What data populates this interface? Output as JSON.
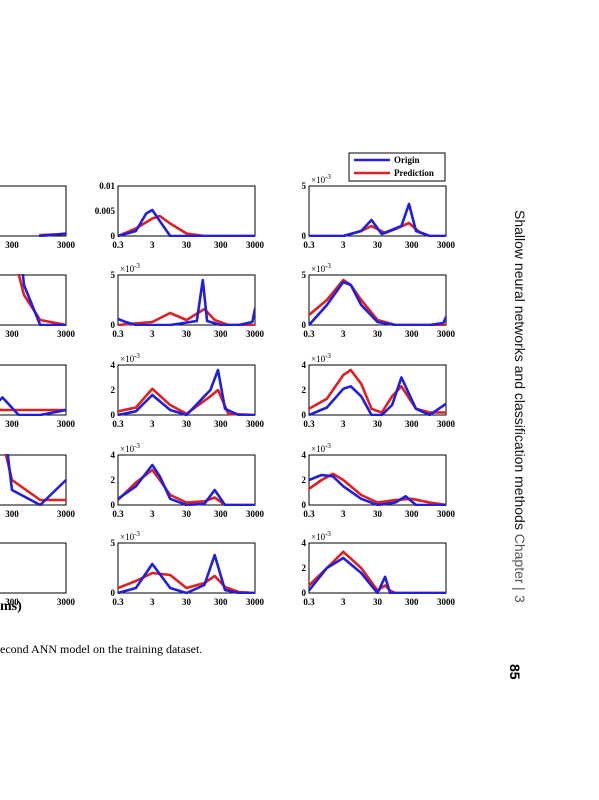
{
  "chart_data": {
    "type": "line",
    "layout": "5 rows x 3 visible columns (left column cropped)",
    "legend": {
      "entries": [
        "Origin",
        "Prediction"
      ],
      "placement": "top-right"
    },
    "colors": {
      "Origin": "#1f1fe0",
      "Prediction": "#e02020"
    },
    "xscale": "log",
    "xticks": [
      "0.3",
      "3",
      "30",
      "300",
      "3000"
    ],
    "panels": [
      {
        "col": 0,
        "row": 0,
        "xticks_visible": [
          "300",
          "3000"
        ],
        "series": [
          {
            "name": "Origin",
            "x": [
              1000,
              3000
            ],
            "y": [
              0,
              0.05
            ]
          },
          {
            "name": "Prediction",
            "x": [
              1000,
              3000
            ],
            "y": [
              0.02,
              0.04
            ]
          }
        ]
      },
      {
        "col": 0,
        "row": 1,
        "xticks_visible": [
          "300",
          "3000"
        ],
        "series": [
          {
            "name": "Origin",
            "x": [
              40,
              100,
              200,
              500,
              1000,
              3000
            ],
            "y": [
              0,
              2.0,
              4.8,
              0.8,
              0,
              0
            ]
          },
          {
            "name": "Prediction",
            "x": [
              40,
              100,
              200,
              500,
              1000,
              3000
            ],
            "y": [
              0.6,
              1.5,
              2.3,
              0.6,
              0.1,
              0
            ]
          }
        ]
      },
      {
        "col": 0,
        "row": 2,
        "xticks_visible": [
          "300",
          "3000"
        ],
        "series": [
          {
            "name": "Origin",
            "x": [
              40,
              100,
              200,
              400,
              1000,
              3000
            ],
            "y": [
              0,
              0.05,
              0.35,
              0,
              0,
              0.1
            ]
          },
          {
            "name": "Prediction",
            "x": [
              40,
              200,
              400,
              1000,
              3000
            ],
            "y": [
              0.15,
              0.1,
              0.1,
              0.1,
              0.1
            ]
          }
        ]
      },
      {
        "col": 0,
        "row": 3,
        "xticks_visible": [
          "300",
          "3000"
        ],
        "series": [
          {
            "name": "Origin",
            "x": [
              40,
              100,
              180,
              300,
              1000,
              3000
            ],
            "y": [
              0,
              0.4,
              2.3,
              0.3,
              0,
              0.5
            ]
          },
          {
            "name": "Prediction",
            "x": [
              40,
              100,
              180,
              300,
              1000,
              3000
            ],
            "y": [
              0.3,
              0.5,
              1.5,
              0.5,
              0.1,
              0.1
            ]
          }
        ]
      },
      {
        "col": 0,
        "row": 4,
        "xticks_visible": [
          "300",
          "3000"
        ],
        "series": []
      },
      {
        "col": 1,
        "row": 0,
        "multiplier": "",
        "yticks": [
          "0",
          "0.005",
          "0.01"
        ],
        "ymax": 0.01,
        "series": [
          {
            "name": "Origin",
            "x": [
              0.3,
              1,
              2,
              3,
              5,
              10,
              30,
              100,
              3000
            ],
            "y": [
              0,
              0.001,
              0.0045,
              0.0052,
              0.003,
              0,
              0,
              0,
              0
            ]
          },
          {
            "name": "Prediction",
            "x": [
              0.3,
              1,
              3,
              5,
              10,
              30,
              100,
              3000
            ],
            "y": [
              0,
              0.0015,
              0.0035,
              0.004,
              0.0025,
              0.0005,
              0,
              0
            ]
          }
        ]
      },
      {
        "col": 1,
        "row": 1,
        "multiplier": "×10^-3",
        "yticks": [
          "0",
          "5"
        ],
        "ymax": 5,
        "series": [
          {
            "name": "Origin",
            "x": [
              0.3,
              0.5,
              1,
              10,
              60,
              90,
              120,
              300,
              1000,
              2500,
              3000
            ],
            "y": [
              0.6,
              0.3,
              0,
              0,
              0.4,
              4.5,
              0.4,
              0,
              0,
              0.3,
              1.6
            ]
          },
          {
            "name": "Prediction",
            "x": [
              0.3,
              3,
              10,
              30,
              100,
              200,
              500,
              3000
            ],
            "y": [
              0,
              0.3,
              1.2,
              0.5,
              1.6,
              0.5,
              0,
              0
            ]
          }
        ]
      },
      {
        "col": 1,
        "row": 2,
        "multiplier": "×10^-3",
        "yticks": [
          "0",
          "2",
          "4"
        ],
        "ymax": 4,
        "series": [
          {
            "name": "Origin",
            "x": [
              0.3,
              1,
              3,
              10,
              30,
              150,
              250,
              400,
              1000,
              3000
            ],
            "y": [
              0,
              0.3,
              1.6,
              0.4,
              0,
              2.0,
              3.6,
              0.5,
              0,
              0
            ]
          },
          {
            "name": "Prediction",
            "x": [
              0.3,
              1,
              3,
              10,
              30,
              150,
              250,
              500,
              3000
            ],
            "y": [
              0.3,
              0.6,
              2.1,
              0.8,
              0.1,
              1.5,
              2.0,
              0.1,
              0
            ]
          }
        ]
      },
      {
        "col": 1,
        "row": 3,
        "multiplier": "×10^-3",
        "yticks": [
          "0",
          "2",
          "4"
        ],
        "ymax": 4,
        "series": [
          {
            "name": "Origin",
            "x": [
              0.3,
              1,
              3,
              5,
              10,
              30,
              100,
              200,
              400,
              3000
            ],
            "y": [
              0.5,
              1.5,
              3.2,
              2.3,
              0.5,
              0,
              0.1,
              1.2,
              0,
              0
            ]
          },
          {
            "name": "Prediction",
            "x": [
              0.3,
              1,
              3,
              5,
              10,
              30,
              100,
              200,
              400,
              3000
            ],
            "y": [
              0.4,
              1.8,
              2.8,
              2.0,
              0.8,
              0.2,
              0.3,
              0.6,
              0,
              0
            ]
          }
        ]
      },
      {
        "col": 1,
        "row": 4,
        "multiplier": "×10^-3",
        "yticks": [
          "0",
          "5"
        ],
        "ymax": 5,
        "series": [
          {
            "name": "Origin",
            "x": [
              0.3,
              1,
              3,
              10,
              30,
              100,
              200,
              400,
              1000,
              3000
            ],
            "y": [
              0,
              0.5,
              2.9,
              0.5,
              0,
              0.8,
              3.8,
              0.3,
              0,
              0
            ]
          },
          {
            "name": "Prediction",
            "x": [
              0.3,
              1,
              3,
              10,
              30,
              100,
              200,
              400,
              1000,
              3000
            ],
            "y": [
              0.5,
              1.2,
              2.0,
              1.8,
              0.5,
              1.0,
              1.7,
              0.6,
              0.1,
              0
            ]
          }
        ]
      },
      {
        "col": 2,
        "row": 0,
        "multiplier": "×10^-3",
        "yticks": [
          "0",
          "5"
        ],
        "ymax": 5,
        "series": [
          {
            "name": "Origin",
            "x": [
              0.3,
              3,
              10,
              20,
              40,
              150,
              250,
              400,
              1000,
              3000
            ],
            "y": [
              0,
              0,
              0.5,
              1.6,
              0.2,
              1.0,
              3.2,
              0.5,
              0,
              0
            ]
          },
          {
            "name": "Prediction",
            "x": [
              0.3,
              3,
              10,
              20,
              50,
              100,
              250,
              500,
              1000,
              3000
            ],
            "y": [
              0,
              0,
              0.5,
              1.0,
              0.3,
              0.7,
              1.3,
              0.4,
              0,
              0
            ]
          }
        ]
      },
      {
        "col": 2,
        "row": 1,
        "multiplier": "×10^-3",
        "yticks": [
          "0",
          "5"
        ],
        "ymax": 5,
        "series": [
          {
            "name": "Origin",
            "x": [
              0.3,
              1,
              3,
              5,
              10,
              30,
              100,
              1000,
              2500,
              3000
            ],
            "y": [
              0,
              2,
              4.3,
              4.0,
              2.0,
              0.3,
              0,
              0,
              0.2,
              0.8
            ]
          },
          {
            "name": "Prediction",
            "x": [
              0.3,
              1,
              3,
              5,
              10,
              30,
              100,
              1000,
              3000
            ],
            "y": [
              1.0,
              2.5,
              4.5,
              4.0,
              2.5,
              0.5,
              0,
              0,
              0
            ]
          }
        ]
      },
      {
        "col": 2,
        "row": 2,
        "multiplier": "×10^-3",
        "yticks": [
          "0",
          "2",
          "4"
        ],
        "ymax": 4,
        "series": [
          {
            "name": "Origin",
            "x": [
              0.3,
              1,
              3,
              5,
              10,
              20,
              40,
              80,
              150,
              400,
              1000,
              3000
            ],
            "y": [
              0,
              0.6,
              2.1,
              2.3,
              1.5,
              0,
              0,
              0.8,
              3.0,
              0.5,
              0,
              0.9
            ]
          },
          {
            "name": "Prediction",
            "x": [
              0.3,
              1,
              3,
              5,
              10,
              20,
              40,
              80,
              150,
              400,
              1000,
              3000
            ],
            "y": [
              0.5,
              1.3,
              3.2,
              3.6,
              2.5,
              0.5,
              0.2,
              1.5,
              2.3,
              0.5,
              0.2,
              0.2
            ]
          }
        ]
      },
      {
        "col": 2,
        "row": 3,
        "multiplier": "×10^-3",
        "yticks": [
          "0",
          "2",
          "4"
        ],
        "ymax": 4,
        "series": [
          {
            "name": "Origin",
            "x": [
              0.3,
              0.7,
              1.5,
              3,
              10,
              30,
              100,
              200,
              400,
              3000
            ],
            "y": [
              2.0,
              2.4,
              2.3,
              1.5,
              0.5,
              0,
              0.2,
              0.7,
              0,
              0
            ]
          },
          {
            "name": "Prediction",
            "x": [
              0.3,
              0.7,
              1.5,
              3,
              10,
              30,
              100,
              300,
              1000,
              3000
            ],
            "y": [
              1.3,
              2.0,
              2.5,
              2.0,
              0.8,
              0.2,
              0.4,
              0.5,
              0.2,
              0
            ]
          }
        ]
      },
      {
        "col": 2,
        "row": 4,
        "multiplier": "×10^-3",
        "yticks": [
          "0",
          "2",
          "4"
        ],
        "ymax": 4,
        "series": [
          {
            "name": "Origin",
            "x": [
              0.3,
              1,
              3,
              10,
              30,
              50,
              70,
              100,
              300,
              3000
            ],
            "y": [
              0.2,
              2.0,
              2.8,
              1.6,
              0,
              1.3,
              0,
              0,
              0,
              0
            ]
          },
          {
            "name": "Prediction",
            "x": [
              0.3,
              1,
              3,
              10,
              30,
              50,
              70,
              100,
              300,
              3000
            ],
            "y": [
              0.6,
              2.0,
              3.3,
              2.0,
              0.2,
              0.6,
              0.2,
              0,
              0,
              0
            ]
          }
        ]
      }
    ]
  },
  "xlabel_fragment": "ms)",
  "caption_fragment": "econd ANN model on the training dataset.",
  "running_head": {
    "title": "Shallow neural networks and classification methods",
    "chapter": "Chapter",
    "separator": "|",
    "chapter_number": "3"
  },
  "page_number": "85"
}
